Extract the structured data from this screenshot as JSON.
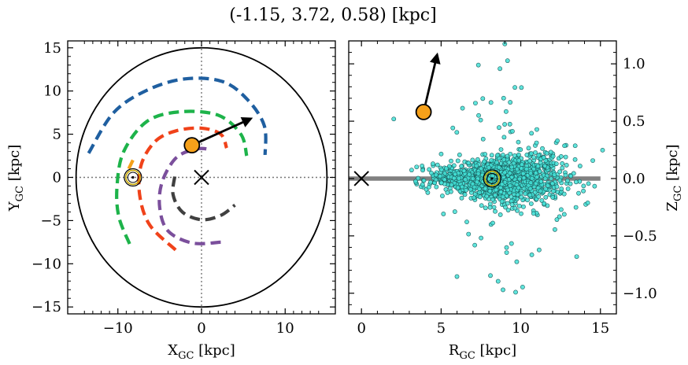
{
  "figure": {
    "title": "(-1.15, 3.72, 0.58) [kpc]"
  },
  "chart_data": [
    {
      "type": "scatter",
      "panel": "left",
      "xlabel": "X_GC [kpc]",
      "ylabel": "Y_GC [kpc]",
      "xlim": [
        -16,
        16
      ],
      "ylim": [
        -15.8,
        15.8
      ],
      "xticks": [
        -10,
        0,
        10
      ],
      "yticks": [
        -15,
        -10,
        -5,
        0,
        5,
        10,
        15
      ],
      "xtick_labels": [
        "−10",
        "0",
        "10"
      ],
      "ytick_labels": [
        "−15",
        "−10",
        "−5",
        "0",
        "5",
        "10",
        "15"
      ],
      "boundary_circle_radius": 15,
      "galactic_center": {
        "x": 0,
        "y": 0,
        "marker": "x"
      },
      "sun": {
        "x": -8.2,
        "y": 0,
        "marker": "sun-symbol"
      },
      "object": {
        "x": -1.15,
        "y": 3.72,
        "color": "#f5a01a"
      },
      "velocity_arrow": {
        "x0": -1.15,
        "y0": 3.72,
        "x1": 5.9,
        "y1": 6.8
      },
      "spiral_arms": [
        {
          "color": "#1f5fa0",
          "points": [
            [
              -13.5,
              2.8
            ],
            [
              -10.5,
              7.5
            ],
            [
              -6.5,
              10.1
            ],
            [
              -2,
              11.4
            ],
            [
              2.5,
              11.1
            ],
            [
              5.5,
              9
            ],
            [
              7.5,
              6
            ],
            [
              7.6,
              2.6
            ]
          ]
        },
        {
          "color": "#1db34a",
          "points": [
            [
              -8.6,
              -7.7
            ],
            [
              -9.9,
              -4.5
            ],
            [
              -10.1,
              -1
            ],
            [
              -9.3,
              3
            ],
            [
              -6.5,
              6.5
            ],
            [
              -2.5,
              7.6
            ],
            [
              2,
              7.2
            ],
            [
              4.7,
              5
            ],
            [
              5.4,
              2.5
            ]
          ]
        },
        {
          "color": "#f0421a",
          "points": [
            [
              -3.1,
              -8.4
            ],
            [
              -6.2,
              -5.5
            ],
            [
              -7.4,
              -2
            ],
            [
              -7.2,
              1.5
            ],
            [
              -5.5,
              4.2
            ],
            [
              -3,
              5.4
            ],
            [
              0,
              5.7
            ],
            [
              2.3,
              5
            ],
            [
              3,
              3.4
            ]
          ]
        },
        {
          "color": "#7b4f9c",
          "points": [
            [
              2.3,
              -7.5
            ],
            [
              -1.1,
              -7.6
            ],
            [
              -4,
              -6.2
            ],
            [
              -5,
              -3.5
            ],
            [
              -4.7,
              -0.5
            ],
            [
              -3,
              2.3
            ],
            [
              -0.5,
              3.3
            ],
            [
              1.2,
              3.2
            ]
          ]
        },
        {
          "color": "#404040",
          "points": [
            [
              -3.2,
              0.1
            ],
            [
              -3.4,
              -2
            ],
            [
              -2.3,
              -4
            ],
            [
              0,
              -4.9
            ],
            [
              2.3,
              -4.4
            ],
            [
              4,
              -3.2
            ]
          ]
        },
        {
          "color": "#f5a01a",
          "points": [
            [
              -8.2,
              2
            ],
            [
              -8.7,
              1
            ]
          ]
        }
      ]
    },
    {
      "type": "scatter",
      "panel": "right",
      "xlabel": "R_GC [kpc]",
      "ylabel": "Z_GC [kpc]",
      "xlim": [
        -0.8,
        16
      ],
      "ylim": [
        -1.18,
        1.2
      ],
      "xticks": [
        0,
        5,
        10,
        15
      ],
      "yticks": [
        -1.0,
        -0.5,
        0.0,
        0.5,
        1.0
      ],
      "xtick_labels": [
        "0",
        "5",
        "10",
        "15"
      ],
      "ytick_labels": [
        "−1.0",
        "−0.5",
        "0.0",
        "0.5",
        "1.0"
      ],
      "disk_line": {
        "x0": -0.8,
        "x1": 15,
        "z": 0,
        "color": "#808080"
      },
      "galactic_center": {
        "x": 0,
        "y": 0,
        "marker": "x"
      },
      "sun": {
        "x": 8.2,
        "y": 0,
        "marker": "sun-symbol"
      },
      "object": {
        "x": 3.9,
        "y": 0.58,
        "color": "#f5a01a"
      },
      "velocity_arrow": {
        "x0": 3.9,
        "y0": 0.58,
        "x1": 4.75,
        "y1": 1.08
      },
      "stars": {
        "fill": "#43e0d6",
        "stroke": "#1a5a5a",
        "count": 1400,
        "seed": 12345,
        "r_center": 8.7,
        "r_sigma": 2.0,
        "z_sigma": 0.1,
        "outlier_fraction": 0.05
      }
    }
  ]
}
